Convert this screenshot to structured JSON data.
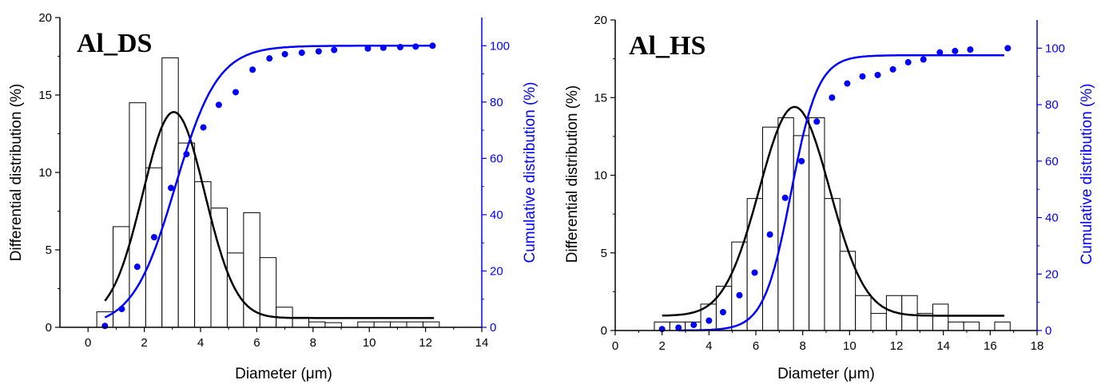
{
  "colors": {
    "left_axis": "#000000",
    "right_axis": "#0000ff",
    "fit_black": "#000000",
    "fit_blue": "#0000ff",
    "bars_fill": "#ffffff",
    "bars_stroke": "#000000"
  },
  "chart_data": [
    {
      "type": "bar",
      "panel_label": "Al_DS",
      "xlabel": "Diameter (μm)",
      "ylabel": "Differential distribution (%)",
      "y2label": "Cumulative distribution (%)",
      "xlim": [
        -1,
        14
      ],
      "ylim": [
        0,
        20
      ],
      "y2lim": [
        0,
        110
      ],
      "xticks": [
        0,
        2,
        4,
        6,
        8,
        10,
        12,
        14
      ],
      "yticks": [
        0,
        5,
        10,
        15,
        20
      ],
      "y2ticks": [
        0,
        20,
        40,
        60,
        80,
        100
      ],
      "bin_width": 0.58,
      "bars": {
        "x": [
          0.6,
          1.18,
          1.76,
          2.34,
          2.92,
          3.5,
          4.08,
          4.66,
          5.24,
          5.82,
          6.4,
          6.98,
          7.56,
          8.14,
          8.72,
          9.3,
          9.88,
          10.46,
          11.04,
          11.62,
          12.2
        ],
        "values": [
          1.0,
          6.5,
          14.5,
          10.3,
          17.4,
          11.9,
          9.4,
          7.7,
          4.8,
          7.4,
          4.5,
          1.3,
          0.65,
          0.35,
          0.3,
          0.0,
          0.35,
          0.35,
          0.35,
          0.35,
          0.35
        ]
      },
      "gaussian_fit": {
        "y0": 0.6,
        "A": 13.3,
        "xc": 3.05,
        "w": 2.2,
        "x_range": [
          0.6,
          12.3
        ]
      },
      "cumulative": {
        "x": [
          0.6,
          1.2,
          1.75,
          2.35,
          2.95,
          3.5,
          4.1,
          4.65,
          5.25,
          5.85,
          6.45,
          7.0,
          7.6,
          8.2,
          8.75,
          9.95,
          10.5,
          11.1,
          11.65,
          12.25
        ],
        "values": [
          0.5,
          6.5,
          21.5,
          32,
          49.5,
          61.5,
          71,
          79,
          83.5,
          91.5,
          95.5,
          97,
          97.5,
          98,
          98.5,
          99,
          99.3,
          99.5,
          99.7,
          100
        ]
      },
      "cumulative_fit": {
        "x0": 3.1,
        "k": 1.02,
        "top": 100,
        "x_range": [
          0.6,
          12.3
        ]
      }
    },
    {
      "type": "bar",
      "panel_label": "Al_HS",
      "xlabel": "Diameter (μm)",
      "ylabel": "Differential distribution (%)",
      "y2label": "Cumulative distribution (%)",
      "xlim": [
        0,
        18
      ],
      "ylim": [
        0,
        20
      ],
      "y2lim": [
        0,
        110
      ],
      "xticks": [
        0,
        2,
        4,
        6,
        8,
        10,
        12,
        14,
        16,
        18
      ],
      "yticks": [
        0,
        5,
        10,
        15,
        20
      ],
      "y2ticks": [
        0,
        20,
        40,
        60,
        80,
        100
      ],
      "bin_width": 0.66,
      "bars": {
        "x": [
          2.0,
          2.66,
          3.32,
          3.98,
          4.64,
          5.3,
          5.96,
          6.62,
          7.28,
          7.94,
          8.6,
          9.26,
          9.92,
          10.58,
          11.24,
          11.9,
          12.56,
          13.22,
          13.88,
          14.54,
          15.2,
          15.86,
          16.52
        ],
        "values": [
          0.55,
          0.55,
          0.55,
          1.7,
          2.85,
          5.7,
          8.5,
          13.1,
          13.7,
          12.55,
          13.7,
          8.5,
          5.1,
          2.25,
          1.1,
          2.25,
          2.25,
          1.1,
          1.7,
          0.55,
          0.55,
          0.0,
          0.55
        ]
      },
      "gaussian_fit": {
        "y0": 0.95,
        "A": 13.45,
        "xc": 7.65,
        "w": 3.0,
        "x_range": [
          2.0,
          16.6
        ]
      },
      "cumulative": {
        "x": [
          2.0,
          2.7,
          3.35,
          4.0,
          4.6,
          5.3,
          5.95,
          6.6,
          7.25,
          7.95,
          8.6,
          9.25,
          9.9,
          10.55,
          11.2,
          11.85,
          12.5,
          13.15,
          13.85,
          14.5,
          15.15,
          16.75
        ],
        "values": [
          0.5,
          1,
          2,
          3.5,
          6.5,
          12.5,
          20.5,
          34,
          47,
          60,
          74,
          82.5,
          87.5,
          90,
          90.5,
          92.5,
          95,
          96,
          98.5,
          99,
          99.5,
          100
        ]
      },
      "cumulative_fit": {
        "x0": 7.5,
        "k": 0.78,
        "top": 97.5,
        "x_range": [
          2.7,
          16.6
        ]
      }
    }
  ]
}
